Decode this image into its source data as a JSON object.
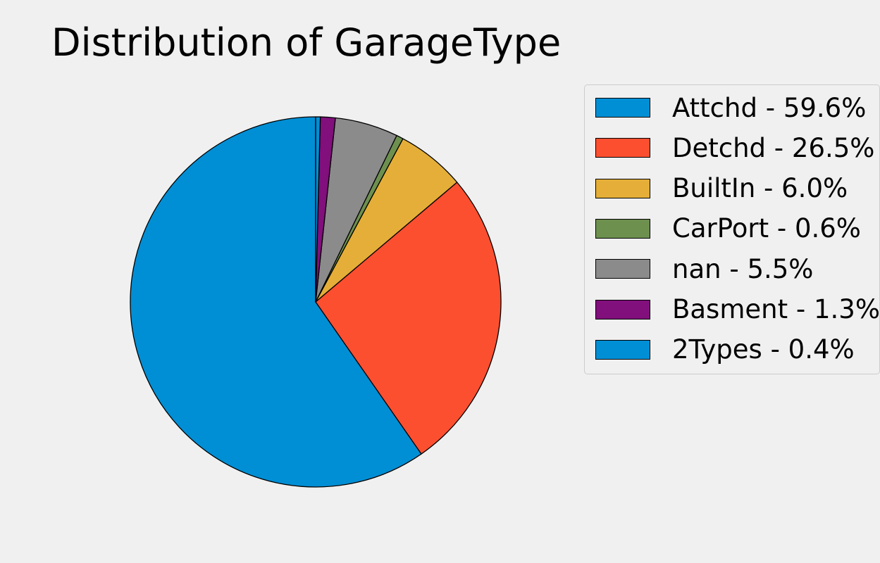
{
  "chart_data": {
    "type": "pie",
    "title": "Distribution of GarageType",
    "slices": [
      {
        "label": "Attchd",
        "value": 59.6,
        "color": "#008fd5"
      },
      {
        "label": "Detchd",
        "value": 26.5,
        "color": "#fc4f30"
      },
      {
        "label": "BuiltIn",
        "value": 6.0,
        "color": "#e5ae38"
      },
      {
        "label": "CarPort",
        "value": 0.6,
        "color": "#6d904f"
      },
      {
        "label": "nan",
        "value": 5.5,
        "color": "#8b8b8b"
      },
      {
        "label": "Basment",
        "value": 1.3,
        "color": "#810f7c"
      },
      {
        "label": "2Types",
        "value": 0.4,
        "color": "#008fd5"
      }
    ],
    "legend": {
      "placement": "upper-right",
      "entries": [
        "Attchd - 59.6%",
        "Detchd - 26.5%",
        "BuiltIn - 6.0%",
        "CarPort - 0.6%",
        "nan - 5.5%",
        "Basment - 1.3%",
        "2Types - 0.4%"
      ]
    },
    "start_angle_deg": 90,
    "direction": "counterclockwise",
    "edge_color": "#000000",
    "background": "#f0f0f0"
  }
}
